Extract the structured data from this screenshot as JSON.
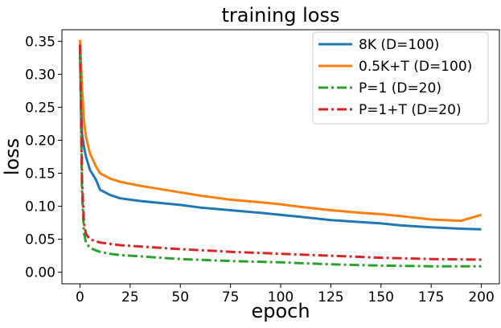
{
  "chart_data": {
    "type": "line",
    "title": "training loss",
    "xlabel": "epoch",
    "ylabel": "loss",
    "xlim": [
      -9,
      209
    ],
    "ylim": [
      -0.0175,
      0.3675
    ],
    "xticks": [
      0,
      25,
      50,
      75,
      100,
      125,
      150,
      175,
      200
    ],
    "xtick_labels": [
      "0",
      "25",
      "50",
      "75",
      "100",
      "125",
      "150",
      "175",
      "200"
    ],
    "yticks": [
      0.0,
      0.05,
      0.1,
      0.15,
      0.2,
      0.25,
      0.3,
      0.35
    ],
    "ytick_labels": [
      "0.00",
      "0.05",
      "0.10",
      "0.15",
      "0.20",
      "0.25",
      "0.30",
      "0.35"
    ],
    "grid": false,
    "legend_position": "top-right",
    "series": [
      {
        "name": "8K (D=100)",
        "color": "#1f77b4",
        "style": "solid",
        "x": [
          0,
          1,
          2,
          3,
          5,
          8,
          10,
          15,
          20,
          30,
          40,
          50,
          60,
          75,
          90,
          100,
          110,
          125,
          140,
          150,
          160,
          175,
          190,
          200
        ],
        "y": [
          0.33,
          0.21,
          0.19,
          0.175,
          0.155,
          0.14,
          0.125,
          0.117,
          0.112,
          0.108,
          0.105,
          0.102,
          0.098,
          0.094,
          0.09,
          0.087,
          0.084,
          0.079,
          0.076,
          0.074,
          0.071,
          0.068,
          0.066,
          0.065
        ]
      },
      {
        "name": "0.5K+T (D=100)",
        "color": "#ff7f0e",
        "style": "solid",
        "x": [
          0,
          1,
          2,
          3,
          5,
          8,
          10,
          15,
          20,
          30,
          40,
          50,
          60,
          75,
          90,
          100,
          110,
          125,
          140,
          150,
          160,
          175,
          190,
          200
        ],
        "y": [
          0.352,
          0.28,
          0.23,
          0.205,
          0.18,
          0.16,
          0.15,
          0.142,
          0.137,
          0.131,
          0.126,
          0.121,
          0.116,
          0.11,
          0.106,
          0.103,
          0.099,
          0.094,
          0.09,
          0.088,
          0.085,
          0.08,
          0.078,
          0.087
        ]
      },
      {
        "name": "P=1 (D=20)",
        "color": "#2ca02c",
        "style": "dashdot",
        "x": [
          0,
          1,
          2,
          3,
          5,
          8,
          10,
          15,
          20,
          30,
          40,
          50,
          75,
          100,
          125,
          150,
          175,
          200
        ],
        "y": [
          0.34,
          0.12,
          0.06,
          0.045,
          0.037,
          0.033,
          0.031,
          0.028,
          0.026,
          0.024,
          0.022,
          0.02,
          0.017,
          0.015,
          0.012,
          0.01,
          0.009,
          0.009
        ]
      },
      {
        "name": "P=1+T (D=20)",
        "color": "#d62728",
        "style": "dashdot",
        "x": [
          0,
          1,
          2,
          3,
          5,
          8,
          10,
          15,
          20,
          30,
          40,
          50,
          75,
          100,
          125,
          150,
          175,
          200
        ],
        "y": [
          0.345,
          0.14,
          0.075,
          0.058,
          0.05,
          0.047,
          0.045,
          0.043,
          0.041,
          0.039,
          0.037,
          0.035,
          0.031,
          0.028,
          0.025,
          0.022,
          0.02,
          0.019
        ]
      }
    ]
  }
}
